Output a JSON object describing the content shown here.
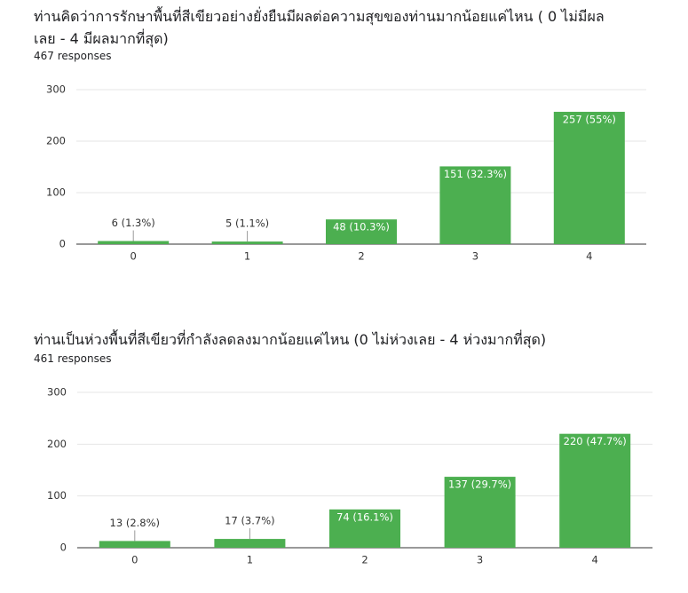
{
  "chart_data": [
    {
      "type": "bar",
      "title": "ท่านคิดว่าการรักษาพื้นที่สีเขียวอย่างยั่งยืนมีผลต่อความสุขของท่านมากน้อยแค่ไหน ( 0 ไม่มีผลเลย - 4 มีผลมากที่สุด)",
      "subtitle": "467 responses",
      "categories": [
        "0",
        "1",
        "2",
        "3",
        "4"
      ],
      "values": [
        6,
        5,
        48,
        151,
        257
      ],
      "value_labels": [
        "6 (1.3%)",
        "5 (1.1%)",
        "48 (10.3%)",
        "151 (32.3%)",
        "257 (55%)"
      ],
      "color": "#4caf50",
      "ylim": [
        0,
        300
      ],
      "yticks": [
        0,
        100,
        200,
        300
      ],
      "grid": true
    },
    {
      "type": "bar",
      "title": "ท่านเป็นห่วงพื้นที่สีเขียวที่กำลังลดลงมากน้อยแค่ไหน (0 ไม่ห่วงเลย - 4 ห่วงมากที่สุด)",
      "subtitle": "461 responses",
      "categories": [
        "0",
        "1",
        "2",
        "3",
        "4"
      ],
      "values": [
        13,
        17,
        74,
        137,
        220
      ],
      "value_labels": [
        "13 (2.8%)",
        "17 (3.7%)",
        "74 (16.1%)",
        "137 (29.7%)",
        "220 (47.7%)"
      ],
      "color": "#4caf50",
      "ylim": [
        0,
        300
      ],
      "yticks": [
        0,
        100,
        200,
        300
      ],
      "grid": true
    }
  ]
}
